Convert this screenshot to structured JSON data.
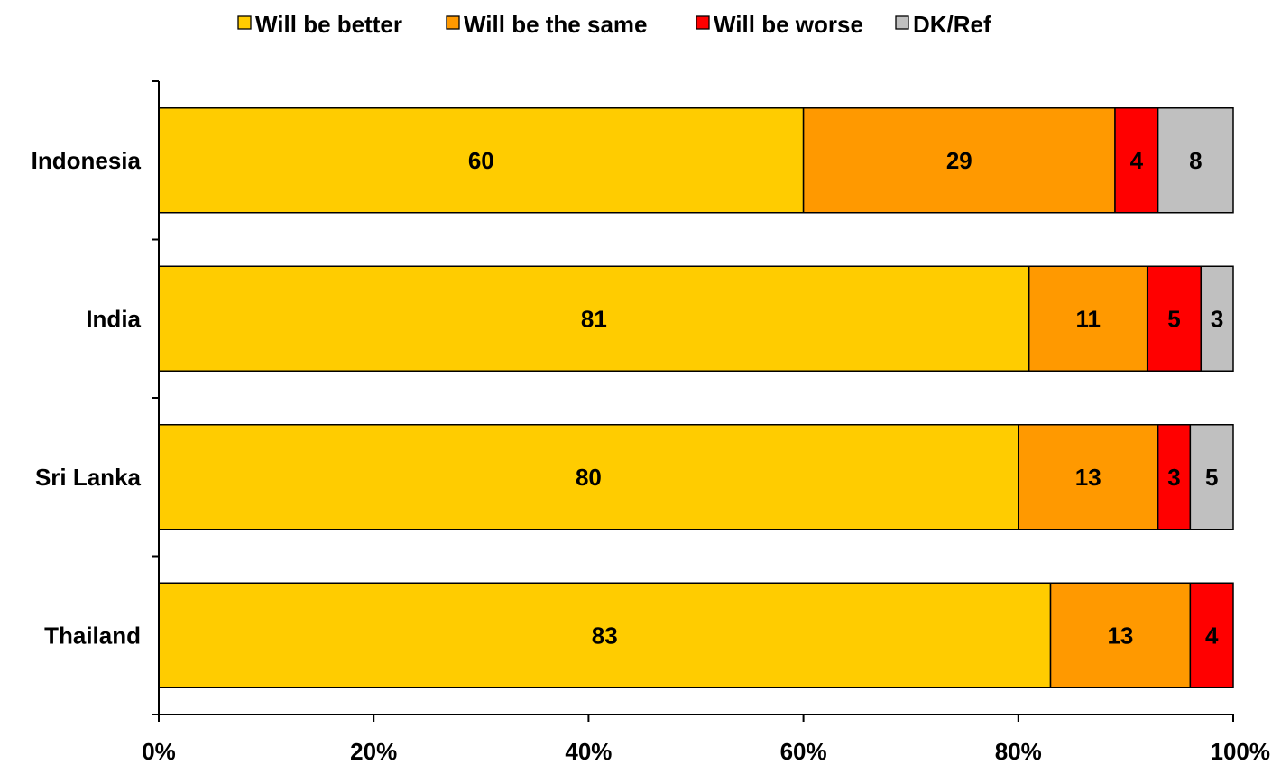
{
  "chart_data": {
    "type": "bar",
    "orientation": "horizontal",
    "stacked": true,
    "categories": [
      "Indonesia",
      "India",
      "Sri Lanka",
      "Thailand"
    ],
    "series": [
      {
        "name": "Will be better",
        "color": "#ffcc00",
        "values": [
          60,
          81,
          80,
          83
        ]
      },
      {
        "name": "Will be the same",
        "color": "#ff9900",
        "values": [
          29,
          11,
          13,
          13
        ]
      },
      {
        "name": "Will be worse",
        "color": "#ff0000",
        "values": [
          4,
          5,
          3,
          4
        ]
      },
      {
        "name": "DK/Ref",
        "color": "#c0c0c0",
        "values": [
          8,
          3,
          5,
          null
        ]
      }
    ],
    "data_labels": [
      [
        "60",
        "29",
        "4",
        "8"
      ],
      [
        "81",
        "11",
        "5",
        "3"
      ],
      [
        "80",
        "13",
        "3",
        "5"
      ],
      [
        "83",
        "13",
        "4",
        ""
      ]
    ],
    "xlim": [
      0,
      100
    ],
    "x_ticks": [
      "0%",
      "20%",
      "40%",
      "60%",
      "80%",
      "100%"
    ],
    "legend_position": "top",
    "grid": false,
    "title": "",
    "xlabel": "",
    "ylabel": ""
  }
}
